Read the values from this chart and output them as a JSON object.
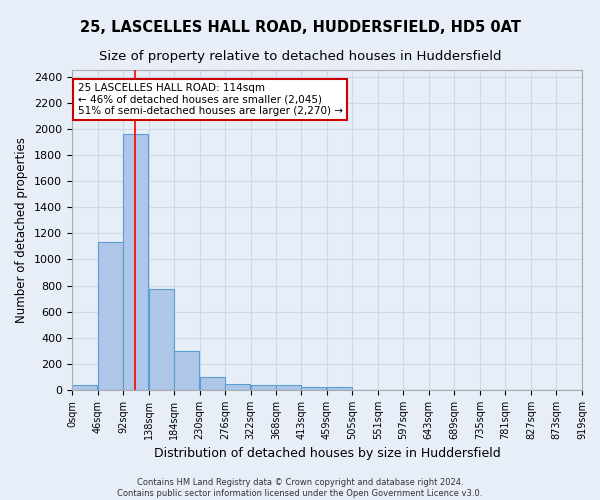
{
  "title": "25, LASCELLES HALL ROAD, HUDDERSFIELD, HD5 0AT",
  "subtitle": "Size of property relative to detached houses in Huddersfield",
  "xlabel": "Distribution of detached houses by size in Huddersfield",
  "ylabel": "Number of detached properties",
  "bin_edges": [
    0,
    46,
    92,
    138,
    184,
    230,
    276,
    322,
    368,
    413,
    459,
    505,
    551,
    597,
    643,
    689,
    735,
    781,
    827,
    873,
    919
  ],
  "bar_heights": [
    35,
    1135,
    1960,
    775,
    300,
    100,
    45,
    40,
    35,
    20,
    20,
    0,
    0,
    0,
    0,
    0,
    0,
    0,
    0,
    0
  ],
  "bar_color": "#aec6e8",
  "bar_edge_color": "#5a9fd4",
  "grid_color": "#d0d8e8",
  "background_color": "#e8eef8",
  "red_line_x": 114,
  "annotation_line1": "25 LASCELLES HALL ROAD: 114sqm",
  "annotation_line2": "← 46% of detached houses are smaller (2,045)",
  "annotation_line3": "51% of semi-detached houses are larger (2,270) →",
  "annotation_box_color": "#ffffff",
  "annotation_box_edge": "#cc0000",
  "footer_line1": "Contains HM Land Registry data © Crown copyright and database right 2024.",
  "footer_line2": "Contains public sector information licensed under the Open Government Licence v3.0.",
  "ylim": [
    0,
    2450
  ],
  "title_fontsize": 10.5,
  "subtitle_fontsize": 9.5
}
